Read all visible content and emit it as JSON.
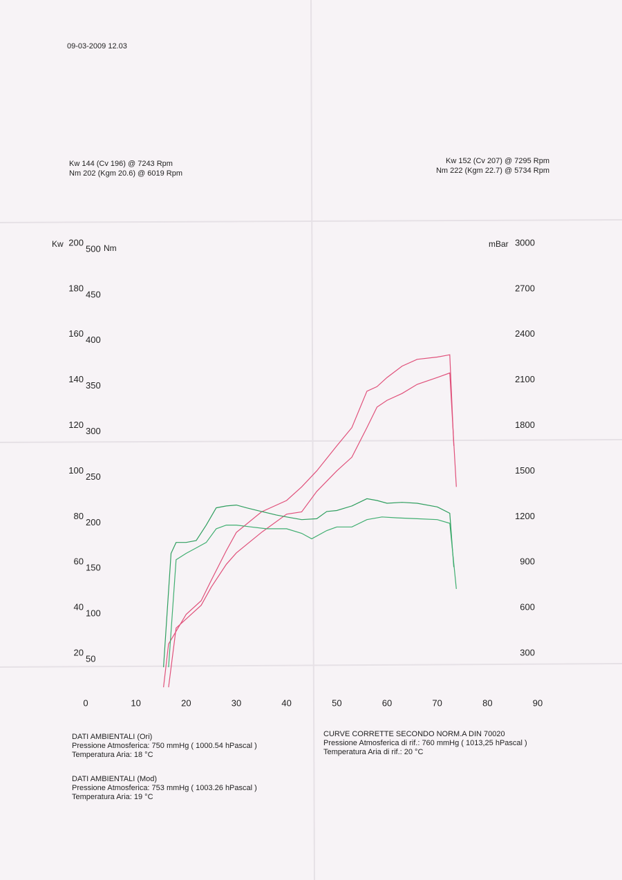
{
  "date": "09-03-2009  12.03",
  "peaks_left": [
    "Kw 144 (Cv 196) @ 7243 Rpm",
    "Nm 202 (Kgm 20.6) @ 6019 Rpm"
  ],
  "peaks_right": [
    "Kw 152 (Cv 207) @ 7295 Rpm",
    "Nm 222 (Kgm 22.7) @ 5734 Rpm"
  ],
  "text_blocks": [
    [
      "DATI AMBIENTALI (Ori)",
      "Pressione Atmosferica: 750 mmHg   ( 1000.54 hPascal )",
      "Temperatura Aria: 18 °C"
    ],
    [
      "DATI AMBIENTALI (Mod)",
      "Pressione Atmosferica: 753 mmHg   ( 1003.26 hPascal )",
      "Temperatura Aria: 19 °C"
    ],
    [
      "CURVE CORRETTE SECONDO NORM.A DIN 70020",
      "Pressione Atmosferica di rif.: 760 mmHg  ( 1013,25 hPascal )",
      "Temperatura Aria di rif.: 20 °C"
    ]
  ],
  "chart_data": {
    "type": "line",
    "ylabel": "Kw",
    "y2label": "Nm",
    "y3label": "mBar",
    "xlim": [
      0,
      90
    ],
    "xticks": [
      0,
      10,
      20,
      30,
      40,
      50,
      60,
      70,
      80,
      90
    ],
    "ylim": [
      0,
      200
    ],
    "yticks": [
      20,
      40,
      60,
      80,
      100,
      120,
      140,
      160,
      180,
      200
    ],
    "y2lim": [
      0,
      500
    ],
    "y2ticks": [
      50,
      100,
      150,
      200,
      250,
      300,
      350,
      400,
      450,
      500
    ],
    "y3lim": [
      0,
      3000
    ],
    "y3ticks": [
      300,
      600,
      900,
      1200,
      1500,
      1800,
      2100,
      2400,
      2700,
      3000
    ],
    "series": [
      {
        "color": "#e0507a",
        "axis": "y",
        "x": [
          15.5,
          16.5,
          20,
          23,
          25,
          28,
          30,
          35,
          40,
          43,
          46,
          50,
          53,
          56,
          58,
          60,
          63,
          66,
          70,
          72.5,
          73.3
        ],
        "values": [
          6,
          25,
          38,
          44,
          53,
          66,
          74,
          83,
          88,
          94,
          101,
          112,
          120,
          136,
          138,
          142,
          147,
          150,
          151,
          152,
          112
        ]
      },
      {
        "color": "#e0507a",
        "axis": "y",
        "x": [
          16.5,
          18,
          20,
          23,
          25,
          28,
          30,
          35,
          40,
          43,
          46,
          50,
          53,
          56,
          58,
          60,
          63,
          66,
          70,
          72.5,
          73.8
        ],
        "values": [
          6,
          32,
          36,
          42,
          50,
          60,
          65,
          74,
          82,
          83,
          92,
          101,
          107,
          120,
          129,
          132,
          135,
          139,
          142,
          144,
          94
        ]
      },
      {
        "color": "#2e9e5e",
        "axis": "y2",
        "x": [
          15.5,
          17,
          18,
          20,
          22,
          24,
          26,
          28,
          30,
          32,
          35,
          38,
          40,
          43,
          46,
          48,
          50,
          53,
          56,
          58,
          60,
          63,
          66,
          70,
          72.5,
          73.3
        ],
        "values": [
          37,
          162,
          174,
          174,
          176,
          193,
          212,
          214,
          215,
          212,
          208,
          204,
          202,
          199,
          200,
          208,
          209,
          214,
          222,
          220,
          217,
          218,
          217,
          213,
          206,
          147
        ]
      },
      {
        "color": "#3fae70",
        "axis": "y2",
        "x": [
          16.5,
          18,
          20,
          22,
          24,
          26,
          28,
          30,
          33,
          36,
          40,
          43,
          45,
          48,
          50,
          53,
          56,
          59,
          62,
          66,
          70,
          72.5,
          73.8
        ],
        "values": [
          37,
          155,
          162,
          168,
          174,
          189,
          193,
          193,
          191,
          189,
          189,
          184,
          178,
          187,
          191,
          191,
          199,
          202,
          201,
          200,
          199,
          195,
          123
        ]
      }
    ]
  }
}
